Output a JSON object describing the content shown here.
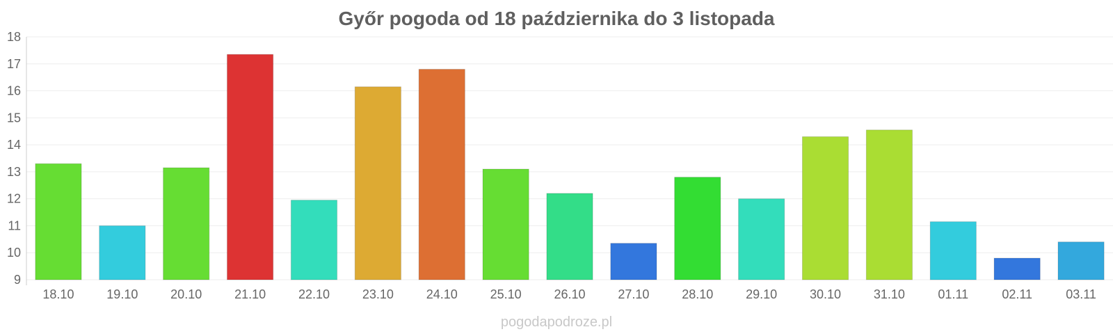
{
  "chart_data": {
    "type": "bar",
    "title": "Győr pogoda od 18 października do 3 listopada",
    "categories": [
      "18.10",
      "19.10",
      "20.10",
      "21.10",
      "22.10",
      "23.10",
      "24.10",
      "25.10",
      "26.10",
      "27.10",
      "28.10",
      "29.10",
      "30.10",
      "31.10",
      "01.11",
      "02.11",
      "03.11"
    ],
    "values": [
      13.3,
      11.0,
      13.15,
      17.35,
      11.95,
      16.15,
      16.8,
      13.1,
      12.2,
      10.35,
      12.8,
      12.0,
      14.3,
      14.55,
      11.15,
      9.8,
      10.4
    ],
    "colors": [
      "#66dd33",
      "#33ccdd",
      "#66dd33",
      "#dd3333",
      "#33ddbb",
      "#ddaa33",
      "#dd6f33",
      "#66dd33",
      "#33dd88",
      "#3377dd",
      "#33dd33",
      "#33ddbb",
      "#aadd33",
      "#aadd33",
      "#33ccdd",
      "#3377dd",
      "#33a8dd"
    ],
    "ylim": [
      9,
      18
    ],
    "yticks": [
      9,
      10,
      11,
      12,
      13,
      14,
      15,
      16,
      17,
      18
    ],
    "xlabel": "",
    "ylabel": "",
    "grid": true,
    "legend": "none"
  },
  "watermark": "pogodapodroze.pl"
}
